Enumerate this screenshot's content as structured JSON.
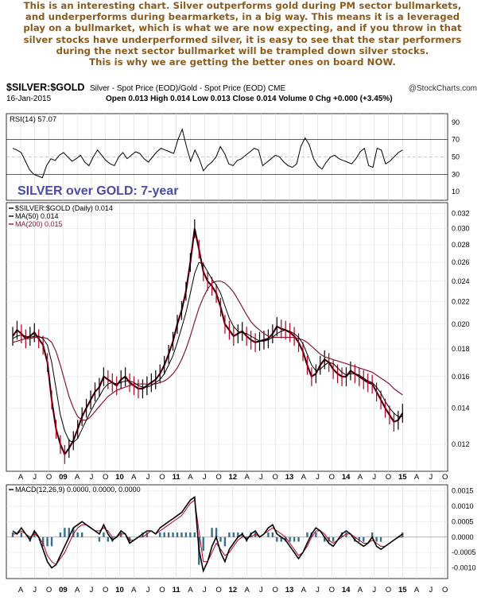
{
  "commentary": {
    "lines": [
      "This is an interesting chart. Silver outperforms gold during PM sector bullmarkets,",
      "and underperforms during bearmarkets, in a big way. This means it is a leveraged",
      "play on a bullmarket, which is what we are now expecting, and if you throw in that",
      "silver stocks have underperformed silver, it is easy to see that the star performers",
      "during the next sector bullmarket will be trampled down silver stocks.",
      "This is why we are getting the better ones on board NOW."
    ],
    "color": "#8a5a1c"
  },
  "header": {
    "symbol": "$SILVER:$GOLD",
    "description": "Silver - Spot Price (EOD)/Gold - Spot Price (EOD) CME",
    "credit": "@StockCharts.com",
    "date": "16-Jan-2015",
    "quote": "Open 0.013  High 0.014  Low 0.013  Close 0.014  Volume 0  Chg +0.000 (+3.45%)",
    "quote_change_color": "#0a8a0a"
  },
  "annotation": {
    "text": "SILVER over GOLD: 7-year",
    "color": "#4a4aa8"
  },
  "chart_data": {
    "type": "line",
    "x_tick_labels": [
      "A",
      "J",
      "O",
      "09",
      "A",
      "J",
      "O",
      "10",
      "A",
      "J",
      "O",
      "11",
      "A",
      "J",
      "O",
      "12",
      "A",
      "J",
      "O",
      "13",
      "A",
      "J",
      "O",
      "14",
      "A",
      "J",
      "O",
      "15",
      "A",
      "J",
      "O"
    ],
    "rsi": {
      "legend": "RSI(14) 57.07",
      "yticks": [
        10,
        30,
        50,
        70,
        90
      ],
      "levels": [
        30,
        70
      ],
      "ylim": [
        0,
        100
      ],
      "series": [
        {
          "name": "RSI(14)",
          "values": [
            60,
            58,
            55,
            45,
            35,
            30,
            28,
            26,
            40,
            48,
            46,
            52,
            55,
            50,
            45,
            48,
            52,
            44,
            40,
            50,
            58,
            52,
            46,
            42,
            40,
            50,
            55,
            48,
            52,
            56,
            54,
            48,
            44,
            50,
            56,
            60,
            58,
            56,
            54,
            70,
            82,
            62,
            45,
            58,
            48,
            34,
            40,
            44,
            50,
            62,
            54,
            42,
            40,
            46,
            48,
            52,
            56,
            60,
            58,
            40,
            44,
            48,
            52,
            50,
            44,
            40,
            38,
            42,
            62,
            72,
            64,
            48,
            40,
            36,
            44,
            50,
            52,
            48,
            46,
            44,
            42,
            48,
            56,
            60,
            40,
            38,
            60,
            58,
            42,
            45,
            50,
            55,
            58
          ]
        }
      ]
    },
    "price": {
      "legend": [
        "$SILVER:$GOLD (Daily) 0.014",
        "MA(50) 0.014",
        "MA(200) 0.015"
      ],
      "scale": "log",
      "yticks": [
        0.012,
        0.014,
        0.016,
        0.018,
        0.02,
        0.022,
        0.024,
        0.026,
        0.028,
        0.03,
        0.032
      ],
      "ylim": [
        0.0107,
        0.0335
      ],
      "colors": {
        "price_up": "#000000",
        "price_down": "#b00020",
        "ma50": "#000000",
        "ma200": "#8b1530"
      },
      "series": [
        {
          "name": "$SILVER:$GOLD (Daily)",
          "values": [
            0.019,
            0.0195,
            0.0192,
            0.0188,
            0.019,
            0.0193,
            0.0188,
            0.0183,
            0.017,
            0.0145,
            0.0128,
            0.012,
            0.0115,
            0.0118,
            0.0122,
            0.0128,
            0.0135,
            0.014,
            0.0145,
            0.015,
            0.0153,
            0.016,
            0.0158,
            0.0156,
            0.0154,
            0.0158,
            0.016,
            0.0156,
            0.0154,
            0.0152,
            0.0152,
            0.0154,
            0.0156,
            0.0158,
            0.0162,
            0.0168,
            0.0176,
            0.0186,
            0.02,
            0.0212,
            0.023,
            0.026,
            0.03,
            0.0275,
            0.025,
            0.024,
            0.0235,
            0.0228,
            0.0215,
            0.02,
            0.0195,
            0.019,
            0.0192,
            0.0194,
            0.019,
            0.0187,
            0.0185,
            0.0186,
            0.0187,
            0.0188,
            0.0192,
            0.0198,
            0.0196,
            0.0195,
            0.0193,
            0.019,
            0.0185,
            0.0178,
            0.0168,
            0.016,
            0.0162,
            0.0168,
            0.0172,
            0.017,
            0.0165,
            0.0162,
            0.016,
            0.016,
            0.0164,
            0.0162,
            0.016,
            0.0158,
            0.0156,
            0.0155,
            0.015,
            0.0145,
            0.014,
            0.0136,
            0.0132,
            0.0133,
            0.0137
          ]
        },
        {
          "name": "MA(50)",
          "values": [
            0.0188,
            0.019,
            0.0191,
            0.019,
            0.0189,
            0.019,
            0.019,
            0.0188,
            0.0183,
            0.017,
            0.0152,
            0.0136,
            0.0127,
            0.0122,
            0.0121,
            0.0123,
            0.0128,
            0.0133,
            0.0138,
            0.0143,
            0.0147,
            0.0152,
            0.0155,
            0.0156,
            0.0155,
            0.0156,
            0.0157,
            0.0157,
            0.0156,
            0.0154,
            0.0153,
            0.0153,
            0.0154,
            0.0156,
            0.0158,
            0.0162,
            0.0168,
            0.0175,
            0.0185,
            0.0197,
            0.021,
            0.0228,
            0.0248,
            0.026,
            0.0258,
            0.025,
            0.0242,
            0.0236,
            0.0228,
            0.0216,
            0.0205,
            0.0198,
            0.0194,
            0.0193,
            0.0192,
            0.019,
            0.0188,
            0.0186,
            0.0186,
            0.0187,
            0.0189,
            0.0192,
            0.0194,
            0.0195,
            0.0194,
            0.0192,
            0.0189,
            0.0184,
            0.0176,
            0.0168,
            0.0164,
            0.0165,
            0.0168,
            0.017,
            0.0169,
            0.0166,
            0.0163,
            0.0161,
            0.0162,
            0.0162,
            0.0161,
            0.0159,
            0.0157,
            0.0156,
            0.0153,
            0.0149,
            0.0144,
            0.014,
            0.0137,
            0.0135,
            0.0135
          ]
        },
        {
          "name": "MA(200)",
          "values": [
            0.0185,
            0.0186,
            0.0187,
            0.0188,
            0.0188,
            0.0189,
            0.0189,
            0.0189,
            0.0188,
            0.0185,
            0.0178,
            0.0168,
            0.0157,
            0.0147,
            0.014,
            0.0135,
            0.0133,
            0.0133,
            0.0135,
            0.0138,
            0.0141,
            0.0144,
            0.0147,
            0.0149,
            0.0151,
            0.0152,
            0.0153,
            0.0154,
            0.0155,
            0.0155,
            0.0155,
            0.0155,
            0.0155,
            0.0155,
            0.0156,
            0.0157,
            0.0159,
            0.0162,
            0.0166,
            0.0172,
            0.018,
            0.019,
            0.0202,
            0.0214,
            0.0224,
            0.0232,
            0.0238,
            0.024,
            0.024,
            0.0238,
            0.0234,
            0.0229,
            0.0222,
            0.0215,
            0.0208,
            0.0202,
            0.0198,
            0.0195,
            0.0192,
            0.019,
            0.0189,
            0.0189,
            0.0189,
            0.0189,
            0.0189,
            0.0189,
            0.0188,
            0.0187,
            0.0185,
            0.0182,
            0.0179,
            0.0176,
            0.0174,
            0.0173,
            0.0172,
            0.0171,
            0.017,
            0.0169,
            0.0168,
            0.0167,
            0.0166,
            0.0165,
            0.0164,
            0.0163,
            0.0161,
            0.0159,
            0.0157,
            0.0155,
            0.0152,
            0.015,
            0.0148
          ]
        }
      ]
    },
    "macd": {
      "legend": "MACD(12,26,9) 0.0000, 0.0000, 0.0000",
      "yticks": [
        -0.001,
        -0.0005,
        0.0,
        0.0005,
        0.001,
        0.0015
      ],
      "ylim": [
        -0.00135,
        0.0017
      ],
      "colors": {
        "macd": "#000000",
        "signal": "#b00020",
        "histogram": "#3a6e8a"
      },
      "series": [
        {
          "name": "MACD",
          "values": [
            0.0002,
            0.0001,
            0.0003,
            0.0001,
            -0.0001,
            0.0002,
            0.0,
            -0.0004,
            -0.0008,
            -0.001,
            -0.0009,
            -0.0006,
            -0.0003,
            0.0,
            0.0003,
            0.0004,
            0.0005,
            0.0004,
            0.0003,
            0.0002,
            0.0001,
            0.0004,
            0.0001,
            -0.0001,
            0.0,
            0.0002,
            0.0001,
            -0.0002,
            -0.0001,
            0.0,
            0.0001,
            0.0002,
            0.0002,
            0.0001,
            0.0003,
            0.0004,
            0.0005,
            0.0006,
            0.0007,
            0.0008,
            0.001,
            0.0012,
            0.0013,
            -0.0004,
            -0.0011,
            -0.0008,
            -0.0003,
            0.0,
            -0.0005,
            -0.0008,
            -0.0004,
            -0.0002,
            0.0,
            0.0001,
            -0.0001,
            0.0001,
            0.0002,
            0.0,
            0.0001,
            0.0003,
            0.0004,
            0.0001,
            0.0,
            -0.0001,
            -0.0003,
            -0.0005,
            -0.0007,
            -0.0005,
            -0.0002,
            0.0001,
            0.0003,
            0.0002,
            0.0,
            -0.0002,
            -0.0003,
            -0.0001,
            0.0001,
            0.0002,
            0.0001,
            -0.0001,
            -0.0002,
            -0.0003,
            -0.0002,
            0.0,
            -0.0003,
            -0.0004,
            -0.0003,
            -0.0002,
            -0.0001,
            0.0,
            0.0001
          ]
        },
        {
          "name": "Signal",
          "values": [
            0.0001,
            0.0001,
            0.0002,
            0.0001,
            0.0,
            0.0001,
            0.0,
            -0.0002,
            -0.0006,
            -0.0008,
            -0.0009,
            -0.0007,
            -0.0005,
            -0.0002,
            0.0001,
            0.0003,
            0.0004,
            0.0004,
            0.0003,
            0.0002,
            0.0002,
            0.0003,
            0.0002,
            0.0,
            0.0,
            0.0001,
            0.0001,
            -0.0001,
            -0.0001,
            0.0,
            0.0,
            0.0001,
            0.0002,
            0.0001,
            0.0002,
            0.0003,
            0.0004,
            0.0005,
            0.0006,
            0.0007,
            0.0009,
            0.0011,
            0.0012,
            0.0002,
            -0.0008,
            -0.0008,
            -0.0005,
            -0.0002,
            -0.0004,
            -0.0006,
            -0.0005,
            -0.0003,
            -0.0001,
            0.0,
            0.0,
            0.0,
            0.0001,
            0.0,
            0.0001,
            0.0002,
            0.0003,
            0.0002,
            0.0001,
            0.0,
            -0.0002,
            -0.0004,
            -0.0006,
            -0.0005,
            -0.0003,
            0.0,
            0.0002,
            0.0002,
            0.0001,
            -0.0001,
            -0.0002,
            -0.0001,
            0.0,
            0.0001,
            0.0001,
            0.0,
            -0.0001,
            -0.0002,
            -0.0002,
            -0.0001,
            -0.0002,
            -0.0003,
            -0.0003,
            -0.0002,
            -0.0001,
            0.0,
            0.0
          ]
        }
      ]
    }
  }
}
